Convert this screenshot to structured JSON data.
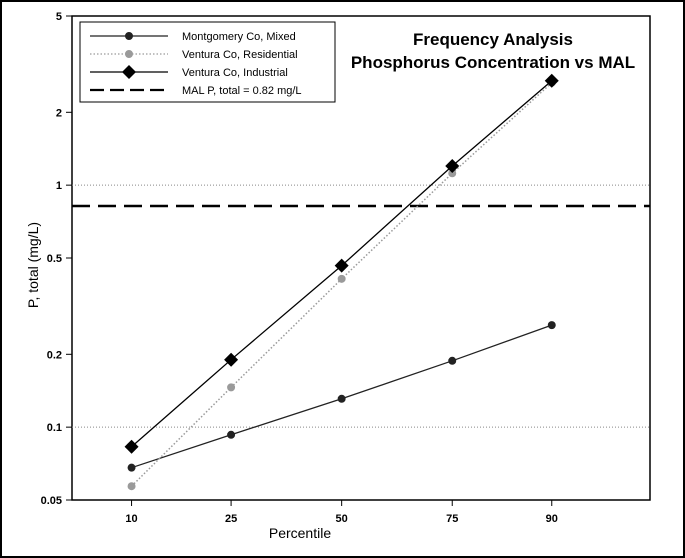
{
  "chart_data": {
    "type": "line",
    "title": "Frequency Analysis",
    "subtitle": "Phosphorus Concentration vs MAL",
    "xlabel": "Percentile",
    "ylabel": "P, total (mg/L)",
    "x_scale": "probability",
    "y_scale": "log",
    "xlim": [
      5,
      97
    ],
    "ylim": [
      0.05,
      5
    ],
    "x": [
      10,
      25,
      50,
      75,
      90
    ],
    "x_tick_labels": [
      "10",
      "25",
      "50",
      "75",
      "90"
    ],
    "y_ticks": [
      0.05,
      0.1,
      0.2,
      0.5,
      1,
      2,
      5
    ],
    "y_tick_labels": [
      "0.05",
      "0.1",
      "0.2",
      "0.5",
      "1",
      "2",
      "5"
    ],
    "gridlines_y": [
      0.1,
      1
    ],
    "legend_position": "top-left",
    "series": [
      {
        "name": "Montgomery Co, Mixed",
        "values": [
          0.068,
          0.093,
          0.131,
          0.188,
          0.264
        ],
        "color": "#222222",
        "marker": "circle",
        "line": "solid"
      },
      {
        "name": "Ventura Co, Residential",
        "values": [
          0.057,
          0.146,
          0.41,
          1.12,
          2.65
        ],
        "color": "#9a9a9a",
        "marker": "circle",
        "line": "dotted"
      },
      {
        "name": "Ventura Co, Industrial",
        "values": [
          0.083,
          0.19,
          0.465,
          1.2,
          2.7
        ],
        "color": "#000000",
        "marker": "diamond",
        "line": "solid"
      }
    ],
    "reference_lines": [
      {
        "name": "MAL P, total = 0.82 mg/L",
        "value": 0.82,
        "color": "#000000",
        "line": "dashed"
      }
    ]
  }
}
